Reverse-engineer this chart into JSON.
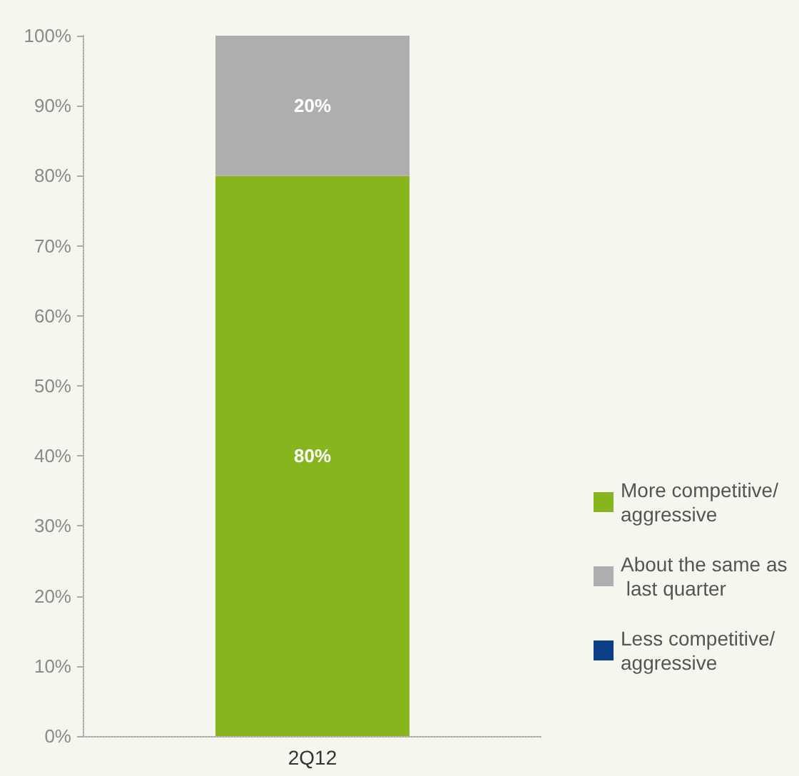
{
  "chart_data": {
    "type": "bar",
    "stacked": true,
    "categories": [
      "2Q12"
    ],
    "series": [
      {
        "name": "More competitive/ aggressive",
        "color": "#86b51e",
        "values": [
          80
        ],
        "value_labels": [
          "80%"
        ]
      },
      {
        "name": "About the same as last quarter",
        "color": "#aeadb0",
        "values": [
          20
        ],
        "value_labels": [
          "20%"
        ]
      },
      {
        "name": "Less competitive/ aggressive",
        "color": "#0a3f86",
        "values": [
          0
        ],
        "value_labels": [
          null
        ]
      }
    ],
    "ylim": [
      0,
      100
    ],
    "yticks": [
      {
        "value": 0,
        "label": "0%"
      },
      {
        "value": 10,
        "label": "10%"
      },
      {
        "value": 20,
        "label": "20%"
      },
      {
        "value": 30,
        "label": "30%"
      },
      {
        "value": 40,
        "label": "40%"
      },
      {
        "value": 50,
        "label": "50%"
      },
      {
        "value": 60,
        "label": "60%"
      },
      {
        "value": 70,
        "label": "70%"
      },
      {
        "value": 80,
        "label": "80%"
      },
      {
        "value": 90,
        "label": "90%"
      },
      {
        "value": 100,
        "label": "100%"
      }
    ],
    "grid": false,
    "legend": "right"
  }
}
